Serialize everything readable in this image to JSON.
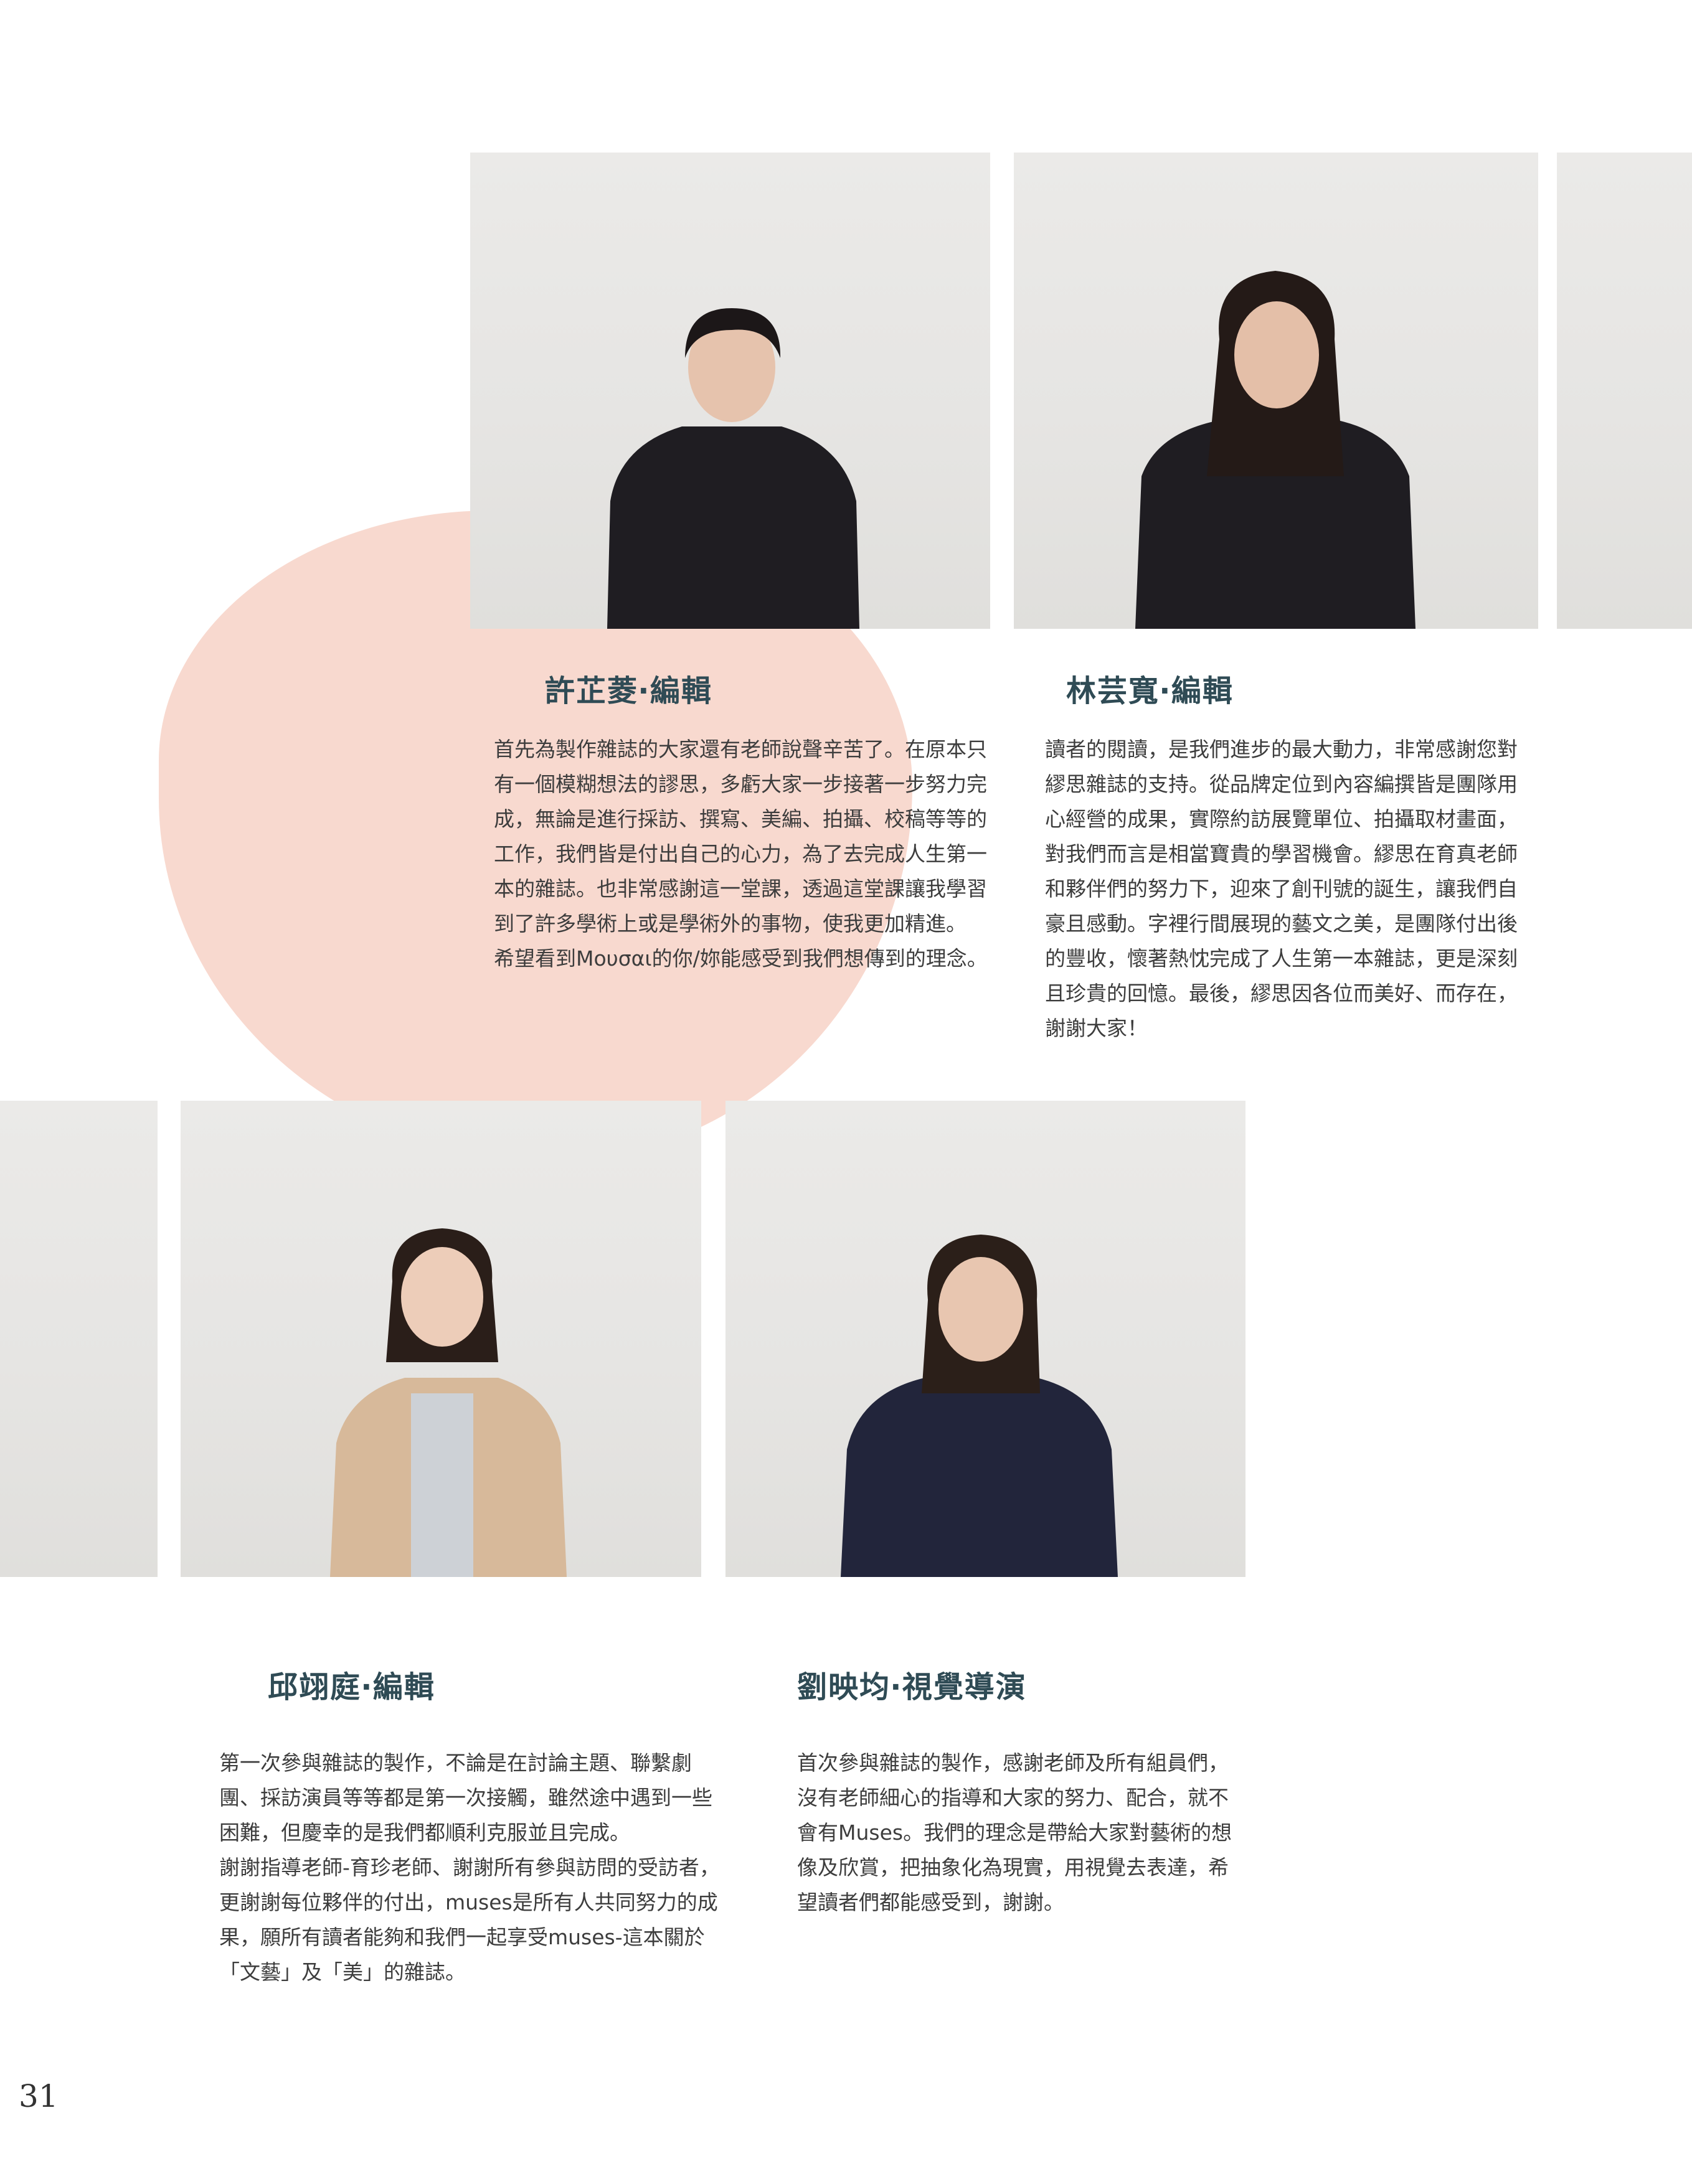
{
  "page_number": "31",
  "accent_color": "#f8d9cf",
  "title_color": "#2f4b55",
  "members": [
    {
      "name": "許芷菱‧編輯",
      "paragraphs": [
        "首先為製作雜誌的大家還有老師說聲辛苦了。在原本只有一個模糊想法的謬思，多虧大家一步接著一步努力完成，無論是進行採訪、撰寫、美編、拍攝、校稿等等的工作，我們皆是付出自己的心力，為了去完成人生第一本的雜誌。也非常感謝這一堂課，透過這堂課讓我學習到了許多學術上或是學術外的事物，使我更加精進。",
        "希望看到Μουσαι的你/妳能感受到我們想傳到的理念。"
      ]
    },
    {
      "name": "林芸寬‧編輯",
      "paragraphs": [
        "讀者的閱讀，是我們進步的最大動力，非常感謝您對繆思雜誌的支持。從品牌定位到內容編撰皆是團隊用心經營的成果，實際約訪展覽單位、拍攝取材畫面，對我們而言是相當寶貴的學習機會。繆思在育真老師和夥伴們的努力下，迎來了創刊號的誕生，讓我們自豪且感動。字裡行間展現的藝文之美，是團隊付出後的豐收，懷著熱忱完成了人生第一本雜誌，更是深刻且珍貴的回憶。最後，繆思因各位而美好、而存在，謝謝大家！"
      ]
    },
    {
      "name": "邱翊庭‧編輯",
      "paragraphs": [
        "第一次參與雜誌的製作，不論是在討論主題、聯繫劇團、採訪演員等等都是第一次接觸，雖然途中遇到一些困難，但慶幸的是我們都順利克服並且完成。",
        "謝謝指導老師-育珍老師、謝謝所有參與訪問的受訪者，更謝謝每位夥伴的付出，muses是所有人共同努力的成果，願所有讀者能夠和我們一起享受muses-這本關於「文藝」及「美」的雜誌。"
      ]
    },
    {
      "name": "劉映均‧視覺導演",
      "paragraphs": [
        "首次參與雜誌的製作，感謝老師及所有組員們，沒有老師細心的指導和大家的努力、配合，就不會有Muses。我們的理念是帶給大家對藝術的想像及欣賞，把抽象化為現實，用視覺去表達，希望讀者們都能感受到，謝謝。"
      ]
    }
  ]
}
